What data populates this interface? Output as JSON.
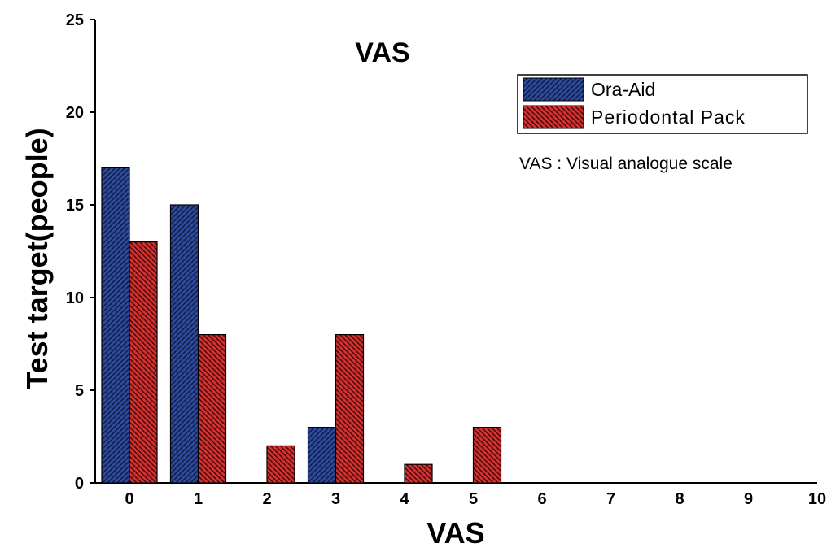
{
  "chart_data": {
    "type": "bar",
    "title": "VAS",
    "xlabel": "VAS",
    "ylabel": "Test target(people)",
    "categories": [
      "0",
      "1",
      "2",
      "3",
      "4",
      "5",
      "6",
      "7",
      "8",
      "9",
      "10"
    ],
    "series": [
      {
        "name": "Ora-Aid",
        "color": "#2e4a9b",
        "values": [
          17,
          15,
          0,
          3,
          0,
          0,
          0,
          0,
          0,
          0,
          0
        ]
      },
      {
        "name": "Periodontal Pack",
        "color": "#d43030",
        "values": [
          13,
          8,
          2,
          8,
          1,
          3,
          0,
          0,
          0,
          0,
          0
        ]
      }
    ],
    "yticks": [
      0,
      5,
      10,
      15,
      20,
      25
    ],
    "ylim": [
      0,
      25
    ],
    "grid": false,
    "legend_position": "top-right",
    "annotation": "VAS : Visual analogue scale"
  }
}
